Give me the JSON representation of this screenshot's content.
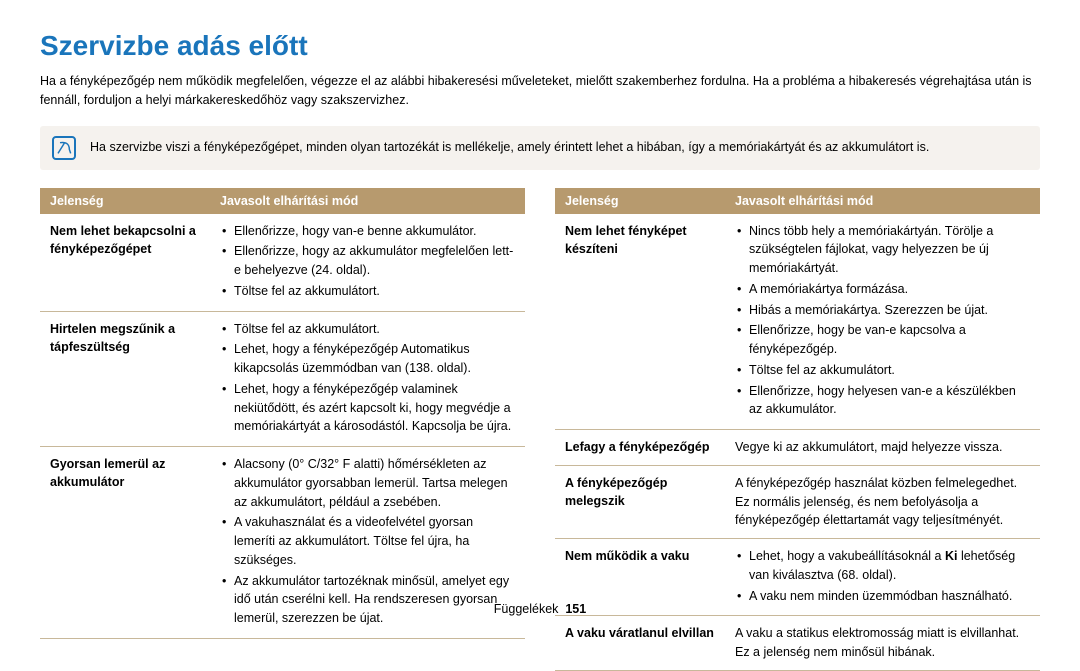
{
  "colors": {
    "title": "#1a75bb",
    "header_bg": "#b79a6e",
    "header_text": "#ffffff",
    "row_border": "#c8b89a",
    "note_bg": "#f5f2ee",
    "note_icon": "#1a75bb",
    "text": "#000000"
  },
  "title": "Szervizbe adás előtt",
  "intro": "Ha a fényképezőgép nem működik megfelelően, végezze el az alábbi hibakeresési műveleteket, mielőtt szakemberhez fordulna. Ha a probléma a hibakeresés végrehajtása után is fennáll, forduljon a helyi márkakereskedőhöz vagy szakszervizhez.",
  "note": "Ha szervizbe viszi a fényképezőgépet, minden olyan tartozékát is mellékelje, amely érintett lehet a hibában, így a memóriakártyát és az akkumulátort is.",
  "headers": {
    "symptom": "Jelenség",
    "remedy": "Javasolt elhárítási mód"
  },
  "left_table": [
    {
      "symptom": "Nem lehet bekapcsolni a fényképezőgépet",
      "items": [
        "Ellenőrizze, hogy van-e benne akkumulátor.",
        "Ellenőrizze, hogy az akkumulátor megfelelően lett-e behelyezve (24. oldal).",
        "Töltse fel az akkumulátort."
      ]
    },
    {
      "symptom": "Hirtelen megszűnik a tápfeszültség",
      "items": [
        "Töltse fel az akkumulátort.",
        "Lehet, hogy a fényképezőgép Automatikus kikapcsolás üzemmódban van (138. oldal).",
        "Lehet, hogy a fényképezőgép valaminek nekiütődött, és azért kapcsolt ki, hogy megvédje a memóriakártyát a károsodástól. Kapcsolja be újra."
      ]
    },
    {
      "symptom": "Gyorsan lemerül az akkumulátor",
      "items": [
        "Alacsony (0° C/32° F alatti) hőmérsékleten az akkumulátor gyorsabban lemerül. Tartsa melegen az akkumulátort, például a zsebében.",
        "A vakuhasználat és a videofelvétel gyorsan lemeríti az akkumulátort. Töltse fel újra, ha szükséges.",
        "Az akkumulátor tartozéknak minősül, amelyet egy idő után cserélni kell. Ha rendszeresen gyorsan lemerül, szerezzen be újat."
      ]
    }
  ],
  "right_table": [
    {
      "symptom": "Nem lehet fényképet készíteni",
      "items": [
        "Nincs több hely a memóriakártyán. Törölje a szükségtelen fájlokat, vagy helyezzen be új memóriakártyát.",
        "A memóriakártya formázása.",
        "Hibás a memóriakártya. Szerezzen be újat.",
        "Ellenőrizze, hogy be van-e kapcsolva a fényképezőgép.",
        "Töltse fel az akkumulátort.",
        "Ellenőrizze, hogy helyesen van-e a készülékben az akkumulátor."
      ]
    },
    {
      "symptom": "Lefagy a fényképezőgép",
      "plain": "Vegye ki az akkumulátort, majd helyezze vissza."
    },
    {
      "symptom": "A fényképezőgép melegszik",
      "plain": "A fényképezőgép használat közben felmelegedhet. Ez normális jelenség, és nem befolyásolja a fényképezőgép élettartamát vagy teljesítményét."
    },
    {
      "symptom": "Nem működik a vaku",
      "html_items": [
        "Lehet, hogy a vakubeállításoknál a <b>Ki</b> lehetőség van kiválasztva (68. oldal).",
        "A vaku nem minden üzemmódban használható."
      ]
    },
    {
      "symptom": "A vaku váratlanul elvillan",
      "plain": "A vaku a statikus elektromosság miatt is elvillanhat. Ez a jelenség nem minősül hibának."
    }
  ],
  "footer": {
    "section": "Függelékek",
    "page": "151"
  }
}
